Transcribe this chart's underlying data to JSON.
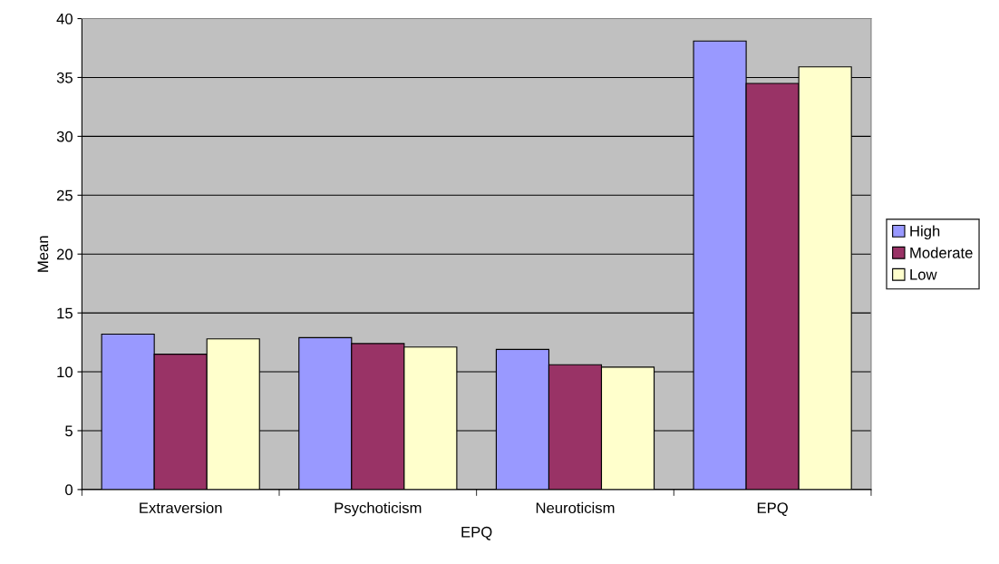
{
  "chart_data": {
    "type": "bar",
    "xlabel": "EPQ",
    "ylabel": "Mean",
    "categories": [
      "Extraversion",
      "Psychoticism",
      "Neuroticism",
      "EPQ"
    ],
    "series": [
      {
        "name": "High",
        "color": "#9999ff",
        "values": [
          13.2,
          12.9,
          11.9,
          38.1
        ]
      },
      {
        "name": "Moderate",
        "color": "#993366",
        "values": [
          11.5,
          12.4,
          10.6,
          34.5
        ]
      },
      {
        "name": "Low",
        "color": "#ffffcc",
        "values": [
          12.8,
          12.1,
          10.4,
          35.9
        ]
      }
    ],
    "ylim": [
      0,
      40
    ],
    "yticks": [
      0,
      5,
      10,
      15,
      20,
      25,
      30,
      35,
      40
    ],
    "grid": "y",
    "legend": "right"
  }
}
